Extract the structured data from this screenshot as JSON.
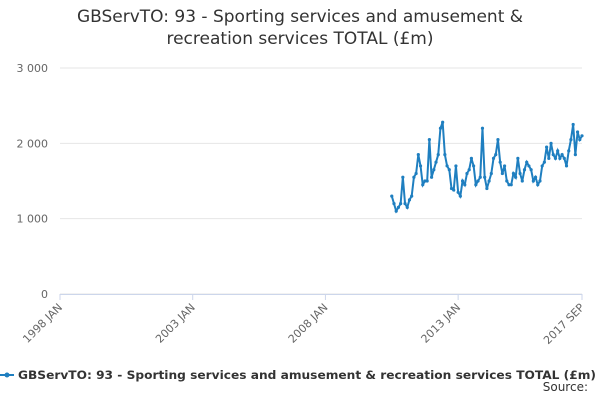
{
  "chart_data": {
    "type": "line",
    "title": "GBServTO: 93 - Sporting services and amusement & recreation services TOTAL (£m)",
    "source_label": "Source:",
    "x": [
      "2010 JUL",
      "2010 AUG",
      "2010 SEP",
      "2010 OCT",
      "2010 NOV",
      "2010 DEC",
      "2011 JAN",
      "2011 FEB",
      "2011 MAR",
      "2011 APR",
      "2011 MAY",
      "2011 JUN",
      "2011 JUL",
      "2011 AUG",
      "2011 SEP",
      "2011 OCT",
      "2011 NOV",
      "2011 DEC",
      "2012 JAN",
      "2012 FEB",
      "2012 MAR",
      "2012 APR",
      "2012 MAY",
      "2012 JUN",
      "2012 JUL",
      "2012 AUG",
      "2012 SEP",
      "2012 OCT",
      "2012 NOV",
      "2012 DEC",
      "2013 JAN",
      "2013 FEB",
      "2013 MAR",
      "2013 APR",
      "2013 MAY",
      "2013 JUN",
      "2013 JUL",
      "2013 AUG",
      "2013 SEP",
      "2013 OCT",
      "2013 NOV",
      "2013 DEC",
      "2014 JAN",
      "2014 FEB",
      "2014 MAR",
      "2014 APR",
      "2014 MAY",
      "2014 JUN",
      "2014 JUL",
      "2014 AUG",
      "2014 SEP",
      "2014 OCT",
      "2014 NOV",
      "2014 DEC",
      "2015 JAN",
      "2015 FEB",
      "2015 MAR",
      "2015 APR",
      "2015 MAY",
      "2015 JUN",
      "2015 JUL",
      "2015 AUG",
      "2015 SEP",
      "2015 OCT",
      "2015 NOV",
      "2015 DEC",
      "2016 JAN",
      "2016 FEB",
      "2016 MAR",
      "2016 APR",
      "2016 MAY",
      "2016 JUN",
      "2016 JUL",
      "2016 AUG",
      "2016 SEP",
      "2016 OCT",
      "2016 NOV",
      "2016 DEC",
      "2017 JAN",
      "2017 FEB",
      "2017 MAR",
      "2017 APR",
      "2017 MAY",
      "2017 JUN",
      "2017 JUL",
      "2017 AUG",
      "2017 SEP"
    ],
    "series": [
      {
        "name": "GBServTO: 93 - Sporting services and amusement & recreation services TOTAL (£m)",
        "color": "#1f7fc0",
        "values": [
          1300,
          1200,
          1100,
          1150,
          1200,
          1550,
          1200,
          1150,
          1250,
          1300,
          1550,
          1600,
          1850,
          1700,
          1450,
          1500,
          1500,
          2050,
          1550,
          1650,
          1750,
          1850,
          2200,
          2280,
          1850,
          1700,
          1650,
          1400,
          1380,
          1700,
          1350,
          1300,
          1500,
          1450,
          1600,
          1650,
          1800,
          1700,
          1450,
          1500,
          1550,
          2200,
          1550,
          1400,
          1500,
          1600,
          1800,
          1850,
          2050,
          1750,
          1600,
          1700,
          1500,
          1450,
          1450,
          1600,
          1550,
          1800,
          1600,
          1500,
          1650,
          1750,
          1700,
          1650,
          1500,
          1550,
          1450,
          1500,
          1700,
          1750,
          1950,
          1800,
          2000,
          1850,
          1800,
          1900,
          1800,
          1850,
          1800,
          1700,
          1900,
          2050,
          2250,
          1850,
          2150,
          2050,
          2100
        ]
      }
    ],
    "xlim": [
      "1998 JAN",
      "2017 SEP"
    ],
    "xticks": [
      "1998 JAN",
      "2003 JAN",
      "2008 JAN",
      "2013 JAN",
      "2017 SEP"
    ],
    "ylim": [
      0,
      3000
    ],
    "yticks": [
      0,
      {
        "value": 1000,
        "label": "1 000"
      },
      {
        "value": 2000,
        "label": "2 000"
      },
      {
        "value": 3000,
        "label": "3 000"
      }
    ],
    "grid": true
  }
}
